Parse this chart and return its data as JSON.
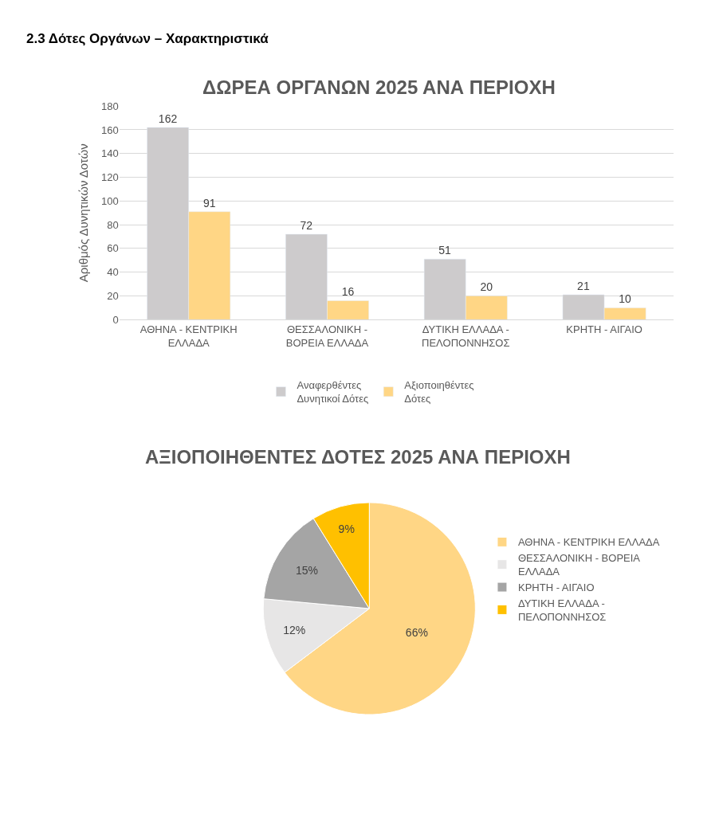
{
  "chart_data": [
    {
      "type": "bar",
      "title": "ΔΩΡΕΑ ΟΡΓΑΝΩΝ 2025 ΑΝΑ ΠΕΡΙΟΧΗ",
      "ylabel": "Αριθμός Δυνητικών Δοτών",
      "annotations": [
        "2.3 Δότες Οργάνων – Χαρακτηριστικά"
      ],
      "categories": [
        "ΑΘΗΝΑ - ΚΕΝΤΡΙΚΗ ΕΛΛΑΔΑ",
        "ΘΕΣΣΑΛΟΝΙΚΗ - ΒΟΡΕΙΑ ΕΛΛΑΔΑ",
        "ΔΥΤΙΚΗ ΕΛΛΑΔΑ - ΠΕΛΟΠΟΝΝΗΣΟΣ",
        "ΚΡΗΤΗ - ΑΙΓΑΙΟ"
      ],
      "series": [
        {
          "name": "Αναφερθέντες Δυνητικοί Δότες",
          "color": "#cdcbcc",
          "values": [
            162,
            72,
            51,
            21
          ]
        },
        {
          "name": "Αξιοποιηθέντες Δότες",
          "color": "#ffd685",
          "values": [
            91,
            16,
            20,
            10
          ]
        }
      ],
      "ylim": [
        0,
        180
      ],
      "yticks": [
        0,
        20,
        40,
        60,
        80,
        100,
        120,
        140,
        160,
        180
      ],
      "grid": "y",
      "legend": "bottom",
      "data_labels": true
    },
    {
      "type": "pie",
      "title": "ΑΞΙΟΠΟΙΗΘΕΝΤΕΣ ΔΟΤΕΣ 2025 ΑΝΑ ΠΕΡΙΟΧΗ",
      "categories": [
        "ΑΘΗΝΑ - ΚΕΝΤΡΙΚΗ ΕΛΛΑΔΑ",
        "ΘΕΣΣΑΛΟΝΙΚΗ - ΒΟΡΕΙΑ ΕΛΛΑΔΑ",
        "ΚΡΗΤΗ - ΑΙΓΑΙΟ",
        "ΔΥΤΙΚΗ ΕΛΛΑΔΑ - ΠΕΛΟΠΟΝΝΗΣΟΣ"
      ],
      "values": [
        66,
        12,
        15,
        9
      ],
      "value_labels": [
        "66%",
        "12%",
        "15%",
        "9%"
      ],
      "colors": [
        "#ffd685",
        "#e7e6e6",
        "#a5a5a5",
        "#ffc000"
      ],
      "legend": "right"
    }
  ]
}
